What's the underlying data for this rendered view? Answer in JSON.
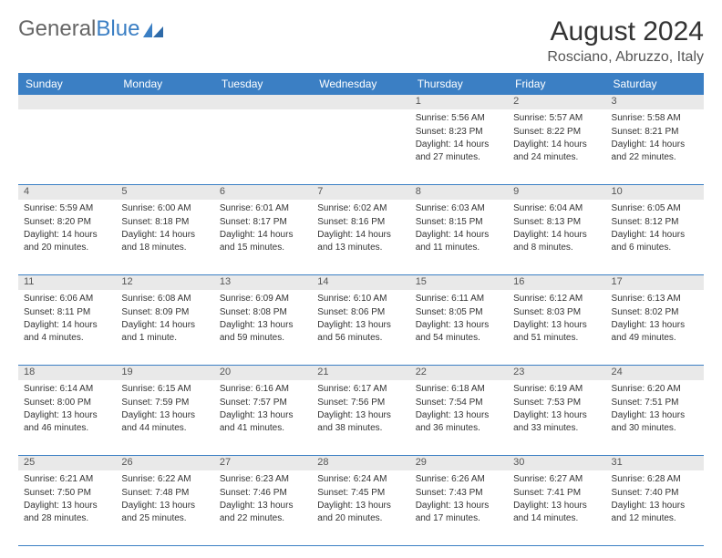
{
  "brand": {
    "g": "General",
    "blue": "Blue"
  },
  "title": "August 2024",
  "location": "Rosciano, Abruzzo, Italy",
  "colors": {
    "header_bg": "#3b7fc4",
    "daynum_bg": "#e9e9e9",
    "border": "#3b7fc4",
    "text": "#333333",
    "background": "#ffffff"
  },
  "day_headers": [
    "Sunday",
    "Monday",
    "Tuesday",
    "Wednesday",
    "Thursday",
    "Friday",
    "Saturday"
  ],
  "weeks": [
    [
      {
        "num": "",
        "sunrise": "",
        "sunset": "",
        "daylight": ""
      },
      {
        "num": "",
        "sunrise": "",
        "sunset": "",
        "daylight": ""
      },
      {
        "num": "",
        "sunrise": "",
        "sunset": "",
        "daylight": ""
      },
      {
        "num": "",
        "sunrise": "",
        "sunset": "",
        "daylight": ""
      },
      {
        "num": "1",
        "sunrise": "Sunrise: 5:56 AM",
        "sunset": "Sunset: 8:23 PM",
        "daylight": "Daylight: 14 hours and 27 minutes."
      },
      {
        "num": "2",
        "sunrise": "Sunrise: 5:57 AM",
        "sunset": "Sunset: 8:22 PM",
        "daylight": "Daylight: 14 hours and 24 minutes."
      },
      {
        "num": "3",
        "sunrise": "Sunrise: 5:58 AM",
        "sunset": "Sunset: 8:21 PM",
        "daylight": "Daylight: 14 hours and 22 minutes."
      }
    ],
    [
      {
        "num": "4",
        "sunrise": "Sunrise: 5:59 AM",
        "sunset": "Sunset: 8:20 PM",
        "daylight": "Daylight: 14 hours and 20 minutes."
      },
      {
        "num": "5",
        "sunrise": "Sunrise: 6:00 AM",
        "sunset": "Sunset: 8:18 PM",
        "daylight": "Daylight: 14 hours and 18 minutes."
      },
      {
        "num": "6",
        "sunrise": "Sunrise: 6:01 AM",
        "sunset": "Sunset: 8:17 PM",
        "daylight": "Daylight: 14 hours and 15 minutes."
      },
      {
        "num": "7",
        "sunrise": "Sunrise: 6:02 AM",
        "sunset": "Sunset: 8:16 PM",
        "daylight": "Daylight: 14 hours and 13 minutes."
      },
      {
        "num": "8",
        "sunrise": "Sunrise: 6:03 AM",
        "sunset": "Sunset: 8:15 PM",
        "daylight": "Daylight: 14 hours and 11 minutes."
      },
      {
        "num": "9",
        "sunrise": "Sunrise: 6:04 AM",
        "sunset": "Sunset: 8:13 PM",
        "daylight": "Daylight: 14 hours and 8 minutes."
      },
      {
        "num": "10",
        "sunrise": "Sunrise: 6:05 AM",
        "sunset": "Sunset: 8:12 PM",
        "daylight": "Daylight: 14 hours and 6 minutes."
      }
    ],
    [
      {
        "num": "11",
        "sunrise": "Sunrise: 6:06 AM",
        "sunset": "Sunset: 8:11 PM",
        "daylight": "Daylight: 14 hours and 4 minutes."
      },
      {
        "num": "12",
        "sunrise": "Sunrise: 6:08 AM",
        "sunset": "Sunset: 8:09 PM",
        "daylight": "Daylight: 14 hours and 1 minute."
      },
      {
        "num": "13",
        "sunrise": "Sunrise: 6:09 AM",
        "sunset": "Sunset: 8:08 PM",
        "daylight": "Daylight: 13 hours and 59 minutes."
      },
      {
        "num": "14",
        "sunrise": "Sunrise: 6:10 AM",
        "sunset": "Sunset: 8:06 PM",
        "daylight": "Daylight: 13 hours and 56 minutes."
      },
      {
        "num": "15",
        "sunrise": "Sunrise: 6:11 AM",
        "sunset": "Sunset: 8:05 PM",
        "daylight": "Daylight: 13 hours and 54 minutes."
      },
      {
        "num": "16",
        "sunrise": "Sunrise: 6:12 AM",
        "sunset": "Sunset: 8:03 PM",
        "daylight": "Daylight: 13 hours and 51 minutes."
      },
      {
        "num": "17",
        "sunrise": "Sunrise: 6:13 AM",
        "sunset": "Sunset: 8:02 PM",
        "daylight": "Daylight: 13 hours and 49 minutes."
      }
    ],
    [
      {
        "num": "18",
        "sunrise": "Sunrise: 6:14 AM",
        "sunset": "Sunset: 8:00 PM",
        "daylight": "Daylight: 13 hours and 46 minutes."
      },
      {
        "num": "19",
        "sunrise": "Sunrise: 6:15 AM",
        "sunset": "Sunset: 7:59 PM",
        "daylight": "Daylight: 13 hours and 44 minutes."
      },
      {
        "num": "20",
        "sunrise": "Sunrise: 6:16 AM",
        "sunset": "Sunset: 7:57 PM",
        "daylight": "Daylight: 13 hours and 41 minutes."
      },
      {
        "num": "21",
        "sunrise": "Sunrise: 6:17 AM",
        "sunset": "Sunset: 7:56 PM",
        "daylight": "Daylight: 13 hours and 38 minutes."
      },
      {
        "num": "22",
        "sunrise": "Sunrise: 6:18 AM",
        "sunset": "Sunset: 7:54 PM",
        "daylight": "Daylight: 13 hours and 36 minutes."
      },
      {
        "num": "23",
        "sunrise": "Sunrise: 6:19 AM",
        "sunset": "Sunset: 7:53 PM",
        "daylight": "Daylight: 13 hours and 33 minutes."
      },
      {
        "num": "24",
        "sunrise": "Sunrise: 6:20 AM",
        "sunset": "Sunset: 7:51 PM",
        "daylight": "Daylight: 13 hours and 30 minutes."
      }
    ],
    [
      {
        "num": "25",
        "sunrise": "Sunrise: 6:21 AM",
        "sunset": "Sunset: 7:50 PM",
        "daylight": "Daylight: 13 hours and 28 minutes."
      },
      {
        "num": "26",
        "sunrise": "Sunrise: 6:22 AM",
        "sunset": "Sunset: 7:48 PM",
        "daylight": "Daylight: 13 hours and 25 minutes."
      },
      {
        "num": "27",
        "sunrise": "Sunrise: 6:23 AM",
        "sunset": "Sunset: 7:46 PM",
        "daylight": "Daylight: 13 hours and 22 minutes."
      },
      {
        "num": "28",
        "sunrise": "Sunrise: 6:24 AM",
        "sunset": "Sunset: 7:45 PM",
        "daylight": "Daylight: 13 hours and 20 minutes."
      },
      {
        "num": "29",
        "sunrise": "Sunrise: 6:26 AM",
        "sunset": "Sunset: 7:43 PM",
        "daylight": "Daylight: 13 hours and 17 minutes."
      },
      {
        "num": "30",
        "sunrise": "Sunrise: 6:27 AM",
        "sunset": "Sunset: 7:41 PM",
        "daylight": "Daylight: 13 hours and 14 minutes."
      },
      {
        "num": "31",
        "sunrise": "Sunrise: 6:28 AM",
        "sunset": "Sunset: 7:40 PM",
        "daylight": "Daylight: 13 hours and 12 minutes."
      }
    ]
  ]
}
